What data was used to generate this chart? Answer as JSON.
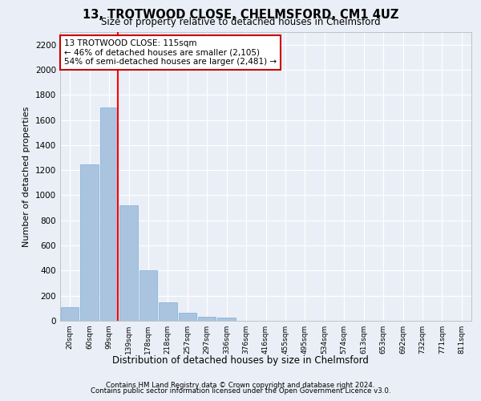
{
  "title": "13, TROTWOOD CLOSE, CHELMSFORD, CM1 4UZ",
  "subtitle": "Size of property relative to detached houses in Chelmsford",
  "xlabel": "Distribution of detached houses by size in Chelmsford",
  "ylabel": "Number of detached properties",
  "categories": [
    "20sqm",
    "60sqm",
    "99sqm",
    "139sqm",
    "178sqm",
    "218sqm",
    "257sqm",
    "297sqm",
    "336sqm",
    "376sqm",
    "416sqm",
    "455sqm",
    "495sqm",
    "534sqm",
    "574sqm",
    "613sqm",
    "653sqm",
    "692sqm",
    "732sqm",
    "771sqm",
    "811sqm"
  ],
  "values": [
    110,
    1245,
    1700,
    920,
    400,
    150,
    65,
    35,
    25,
    0,
    0,
    0,
    0,
    0,
    0,
    0,
    0,
    0,
    0,
    0,
    0
  ],
  "bar_color": "#aac4e0",
  "bar_edge_color": "#7aafd4",
  "red_line_x": 2.45,
  "annotation_text": "13 TROTWOOD CLOSE: 115sqm\n← 46% of detached houses are smaller (2,105)\n54% of semi-detached houses are larger (2,481) →",
  "annotation_box_color": "#ffffff",
  "annotation_box_edge": "#cc0000",
  "ylim": [
    0,
    2300
  ],
  "yticks": [
    0,
    200,
    400,
    600,
    800,
    1000,
    1200,
    1400,
    1600,
    1800,
    2000,
    2200
  ],
  "bg_color": "#eaeff7",
  "plot_bg_color": "#eaeff7",
  "grid_color": "#ffffff",
  "footer1": "Contains HM Land Registry data © Crown copyright and database right 2024.",
  "footer2": "Contains public sector information licensed under the Open Government Licence v3.0."
}
